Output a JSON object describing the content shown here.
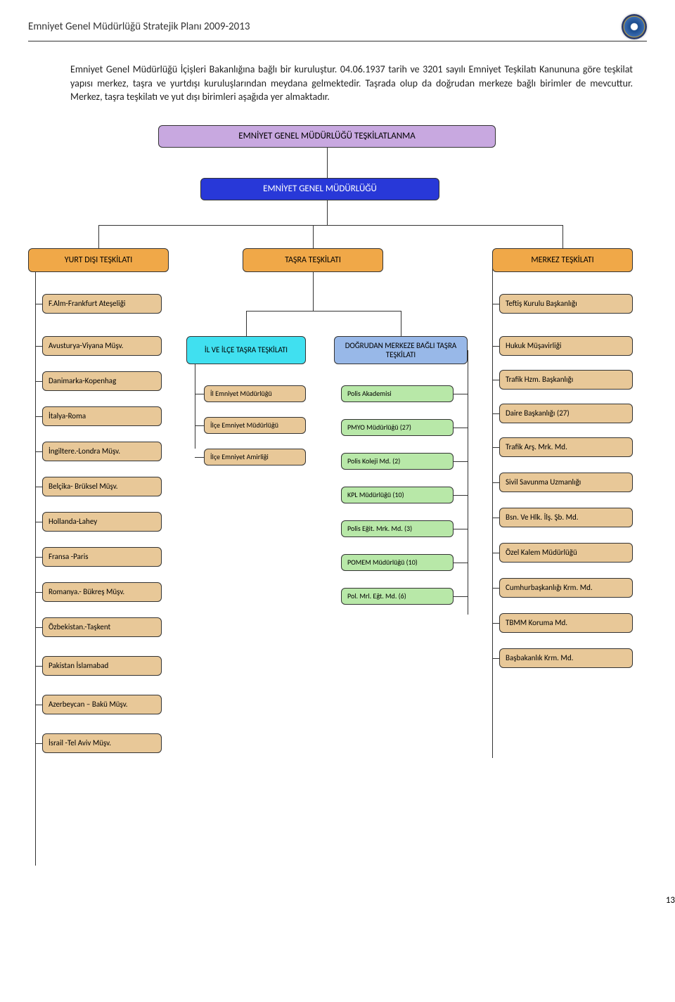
{
  "header": "Emniyet Genel Müdürlüğü Stratejik Planı 2009-2013",
  "intro": "Emniyet Genel Müdürlüğü İçişleri Bakanlığına bağlı bir kuruluştur. 04.06.1937 tarih ve 3201 sayılı Emniyet Teşkilatı Kanununa göre teşkilat yapısı merkez, taşra ve yurtdışı kuruluşlarından meydana gelmektedir. Taşrada olup da doğrudan merkeze bağlı birimler de mevcuttur. Merkez, taşra teşkilatı ve yut dışı birimleri aşağıda yer almaktadır.",
  "page": "13",
  "colors": {
    "purple": "#c8a8e0",
    "blue": "#2838d8",
    "orange": "#f0a848",
    "tan": "#e8c898",
    "cyan": "#40e0f0",
    "blue2": "#98b8e8",
    "green": "#b8e8a8",
    "blueTxt": "#ffffff"
  },
  "nodes": {
    "root": "EMNİYET GENEL MÜDÜRLÜĞÜ TEŞKİLATLANMA",
    "egm": "EMNİYET GENEL MÜDÜRLÜĞÜ",
    "yurt": "YURT DIŞI TEŞKİLATI",
    "tasra": "TAŞRA TEŞKİLATI",
    "merkez": "MERKEZ TEŞKİLATI",
    "ilce": "İL VE İLÇE TAŞRA TEŞKİLATI",
    "dogrudan": "DOĞRUDAN MERKEZE BAĞLI TAŞRA TEŞKİLATI"
  },
  "yurtItems": [
    "F.Alm-Frankfurt Ateşeliği",
    "Avusturya-Viyana Müşv.",
    "Danimarka-Kopenhag",
    "İtalya-Roma",
    "İngiltere.-Londra Müşv.",
    "Belçika- Brüksel Müşv.",
    "Hollanda-Lahey",
    "Fransa -Paris",
    "Romanya.- Bükreş Müşv.",
    "Özbekistan.-Taşkent",
    "Pakistan İslamabad",
    "Azerbeycan – Bakü Müşv.",
    "İsrail -Tel Aviv Müşv."
  ],
  "ilceItems": [
    "İl Emniyet Müdürlüğü",
    "İlçe Emniyet Müdürlüğü",
    "İlçe Emniyet Amirliği"
  ],
  "dogItems": [
    "Polis Akademisi",
    "PMYO Müdürlüğü (27)",
    "Polis Koleji Md. (2)",
    "KPL Müdürlüğü (10)",
    "Polis Eğit. Mrk. Md. (3)",
    "POMEM Müdürlüğü (10)",
    "Pol. Mrl. Eğt. Md. (6)"
  ],
  "merkezItems": [
    "Teftiş Kurulu Başkanlığı",
    "Hukuk Müşavirliği",
    "Trafik Hzm. Başkanlığı",
    "Daire Başkanlığı (27)",
    "Trafik Arş. Mrk. Md.",
    "Sivil Savunma Uzmanlığı",
    "Bsn. Ve Hlk. İlş. Şb. Md.",
    "Özel Kalem Müdürlüğü",
    "Cumhurbaşkanlığı Krm. Md.",
    "TBMM Koruma Md.",
    "Başbakanlık Krm. Md."
  ]
}
